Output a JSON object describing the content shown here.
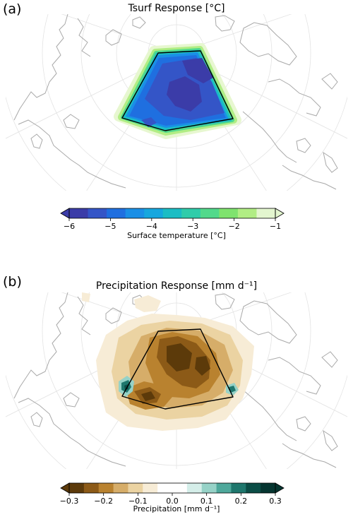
{
  "panel_a": {
    "label": "(a)",
    "title": "Tsurf Response [°C]",
    "colorbar": {
      "label": "Surface temperature [°C]",
      "ticks": [
        "−6",
        "−5",
        "−4",
        "−3",
        "−2",
        "−1"
      ],
      "colors": [
        "#3b3ca8",
        "#3455c7",
        "#1f6fe0",
        "#1a8fe6",
        "#16a7de",
        "#1bbdc4",
        "#2fccaa",
        "#52d98b",
        "#7fe36e",
        "#b1ed84",
        "#e3f6cf"
      ]
    }
  },
  "panel_b": {
    "label": "(b)",
    "title": "Precipitation Response [mm d⁻¹]",
    "colorbar": {
      "label": "Precipitation [mm d⁻¹]",
      "ticks": [
        "−0.3",
        "−0.2",
        "−0.1",
        "0.0",
        "0.1",
        "0.2",
        "0.3"
      ],
      "colors": [
        "#5c3a0a",
        "#8c5a17",
        "#b9822f",
        "#d6ad69",
        "#ebd3a2",
        "#f7ecd6",
        "#ffffff",
        "#ffffff",
        "#d5eee9",
        "#96d2c7",
        "#4ea89b",
        "#1f776d",
        "#0b4d46",
        "#053530"
      ]
    }
  }
}
